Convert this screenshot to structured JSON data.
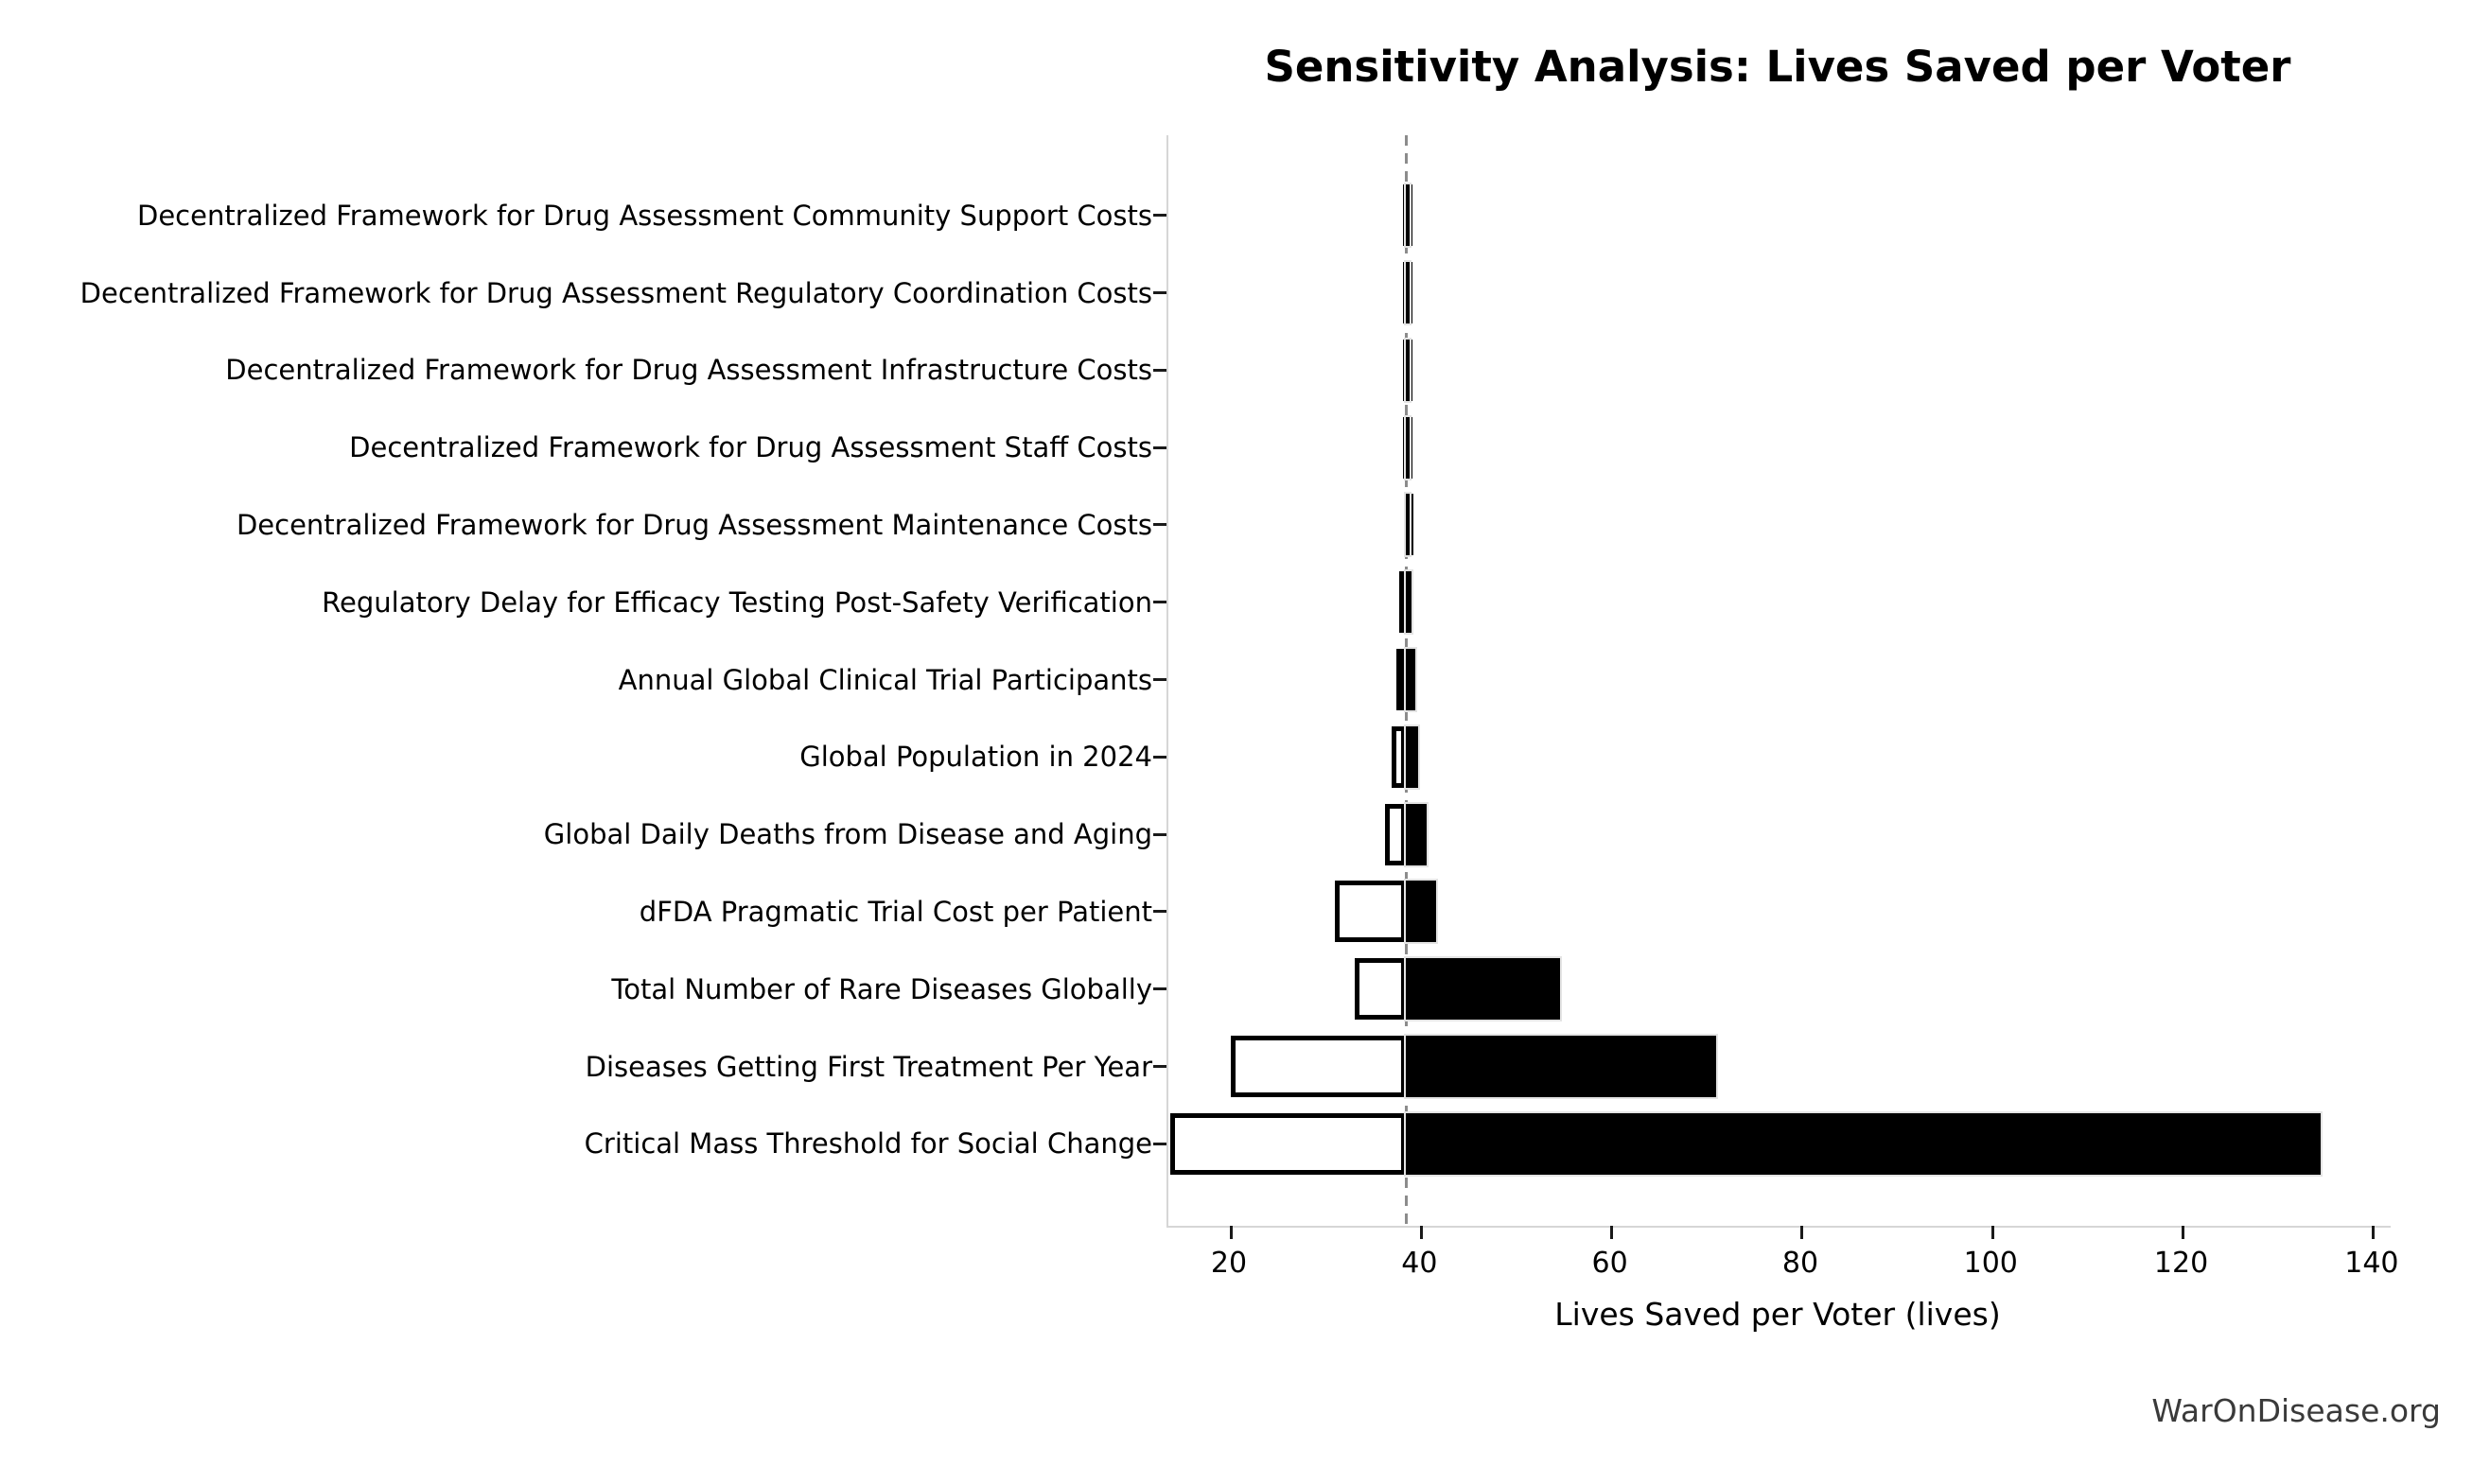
{
  "title": "Sensitivity Analysis: Lives Saved per Voter",
  "footer": "WarOnDisease.org",
  "chart_data": {
    "type": "bar",
    "subtype": "tornado",
    "orientation": "horizontal",
    "title": "Sensitivity Analysis: Lives Saved per Voter",
    "xlabel": "Lives Saved per Voter (lives)",
    "ylabel": "",
    "baseline_value": 38.4,
    "baseline_style": "dashed-gray-vertical-line",
    "xlim": [
      13.44,
      141.8
    ],
    "xticks": [
      20,
      40,
      60,
      80,
      100,
      120,
      140
    ],
    "grid": false,
    "legend": "none",
    "colors": {
      "low_bar_fill": "#ffffff",
      "low_bar_edge": "#000000",
      "high_bar_fill": "#000000",
      "baseline_line": "#8c8c8c",
      "spine": "#d6d6d6",
      "text": "#000000",
      "footer_text": "#3a3a3a"
    },
    "categories": [
      "Decentralized Framework for Drug Assessment Community Support Costs",
      "Decentralized Framework for Drug Assessment Regulatory Coordination Costs",
      "Decentralized Framework for Drug Assessment Infrastructure Costs",
      "Decentralized Framework for Drug Assessment Staff Costs",
      "Decentralized Framework for Drug Assessment Maintenance Costs",
      "Regulatory Delay for Efficacy Testing Post-Safety Verification",
      "Annual Global Clinical Trial Participants",
      "Global Population in 2024",
      "Global Daily Deaths from Disease and Aging",
      "dFDA Pragmatic Trial Cost per Patient",
      "Total Number of Rare Diseases Globally",
      "Diseases Getting First Treatment Per Year",
      "Critical Mass Threshold for Social Change"
    ],
    "series": [
      {
        "name": "low_estimate",
        "values": [
          38.1,
          38.1,
          38.1,
          38.1,
          38.15,
          37.7,
          37.4,
          36.9,
          36.2,
          30.9,
          33.0,
          20.0,
          13.6
        ]
      },
      {
        "name": "high_estimate",
        "values": [
          38.7,
          38.7,
          38.7,
          38.7,
          38.65,
          39.0,
          39.4,
          39.7,
          40.6,
          41.6,
          54.6,
          71.0,
          134.4
        ]
      }
    ]
  }
}
